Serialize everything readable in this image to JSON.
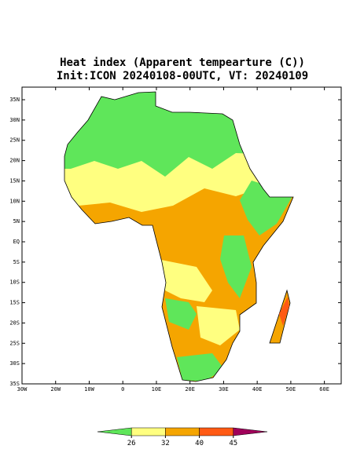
{
  "header": {
    "title": "Heat index (Apparent tempearture (C))",
    "subtitle": "Init:ICON 20240108-00UTC, VT: 20240109"
  },
  "map": {
    "lonlim": [
      -30,
      65
    ],
    "latlim": [
      -35,
      38.1
    ],
    "lon_ticks": [
      {
        "value": -30,
        "label": "30W"
      },
      {
        "value": -20,
        "label": "20W"
      },
      {
        "value": -10,
        "label": "10W"
      },
      0,
      {
        "value": 10,
        "label": "10E"
      },
      {
        "value": 20,
        "label": "20E"
      },
      {
        "value": 30,
        "label": "30E"
      },
      {
        "value": 40,
        "label": "40E"
      },
      {
        "value": 50,
        "label": "50E"
      },
      {
        "value": 60,
        "label": "60E"
      }
    ],
    "lat_ticks": [
      {
        "value": -35,
        "label": "35S"
      },
      {
        "value": -30,
        "label": "30S"
      },
      {
        "value": -25,
        "label": "25S"
      },
      {
        "value": -20,
        "label": "20S"
      },
      {
        "value": -15,
        "label": "15S"
      },
      {
        "value": -10,
        "label": "10S"
      },
      {
        "value": -5,
        "label": "5S"
      },
      {
        "value": 0,
        "label": "EQ"
      },
      {
        "value": 5,
        "label": "5N"
      },
      {
        "value": 10,
        "label": "10N"
      },
      {
        "value": 15,
        "label": "15N"
      },
      {
        "value": 20,
        "label": "20N"
      },
      {
        "value": 25,
        "label": "25N"
      },
      {
        "value": 30,
        "label": "30N"
      },
      {
        "value": 35,
        "label": "35N"
      }
    ]
  },
  "colorbar": {
    "levels": [
      26,
      32,
      40,
      45
    ],
    "colors": [
      "#5fe65a",
      "#ffff80",
      "#f5a500",
      "#ff5a14",
      "#a0005a"
    ]
  }
}
